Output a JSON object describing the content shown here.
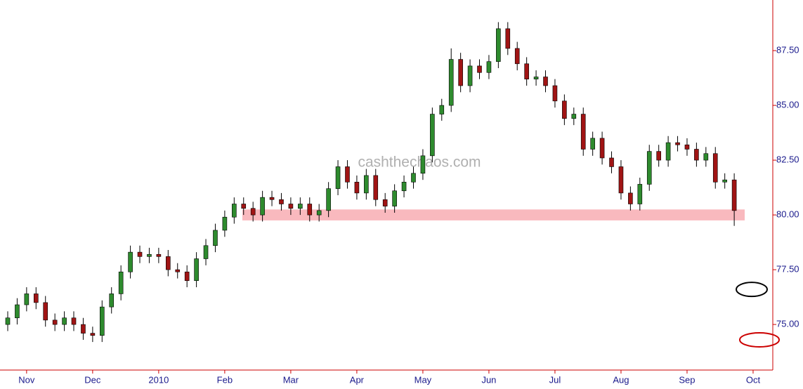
{
  "chart_data": {
    "type": "candlestick",
    "watermark": "cashthechaos.com",
    "categories": [
      null,
      null,
      "Nov",
      null,
      null,
      null,
      null,
      null,
      null,
      "Dec",
      null,
      null,
      null,
      null,
      null,
      null,
      "2010",
      null,
      null,
      null,
      null,
      null,
      null,
      "Feb",
      null,
      null,
      null,
      null,
      null,
      null,
      "Mar",
      null,
      null,
      null,
      null,
      null,
      null,
      "Apr",
      null,
      null,
      null,
      null,
      null,
      null,
      "May",
      null,
      null,
      null,
      null,
      null,
      null,
      "Jun",
      null,
      null,
      null,
      null,
      null,
      null,
      "Jul",
      null,
      null,
      null,
      null,
      null,
      null,
      "Aug",
      null,
      null,
      null,
      null,
      null,
      null,
      "Sep",
      null,
      null,
      null,
      null,
      null,
      null,
      "Oct"
    ],
    "open": [
      75.0,
      75.3,
      75.9,
      76.4,
      76.0,
      75.2,
      75.0,
      75.3,
      75.0,
      74.6,
      74.5,
      75.8,
      76.4,
      77.4,
      78.3,
      78.1,
      78.2,
      78.1,
      77.5,
      77.4,
      77.0,
      78.0,
      78.6,
      79.3,
      79.9,
      80.5,
      80.3,
      80.0,
      80.8,
      80.7,
      80.5,
      80.3,
      80.5,
      80.0,
      80.2,
      81.2,
      82.2,
      81.5,
      81.0,
      81.8,
      80.7,
      80.4,
      81.1,
      81.5,
      81.9,
      82.7,
      84.6,
      85.0,
      87.1,
      85.9,
      86.8,
      86.5,
      87.0,
      88.5,
      87.6,
      86.9,
      86.2,
      86.3,
      85.9,
      85.2,
      84.4,
      84.6,
      83.0,
      83.5,
      82.6,
      82.2,
      81.0,
      80.5,
      81.4,
      82.9,
      82.5,
      83.3,
      83.2,
      83.0,
      82.5,
      82.8,
      81.5,
      81.6,
      null,
      null
    ],
    "high": [
      75.6,
      76.2,
      76.7,
      76.7,
      76.3,
      75.5,
      75.6,
      75.6,
      75.3,
      74.9,
      76.1,
      76.7,
      77.7,
      78.6,
      78.6,
      78.5,
      78.5,
      78.4,
      77.8,
      77.7,
      78.3,
      78.9,
      79.6,
      80.2,
      80.8,
      80.8,
      80.6,
      81.1,
      81.1,
      81.0,
      80.8,
      80.8,
      80.8,
      80.5,
      81.5,
      82.5,
      82.5,
      81.8,
      82.1,
      82.1,
      81.0,
      81.4,
      81.8,
      82.2,
      83.0,
      84.9,
      85.3,
      87.6,
      87.4,
      87.1,
      87.1,
      87.3,
      88.8,
      88.8,
      87.9,
      87.2,
      86.6,
      86.6,
      86.2,
      85.5,
      84.9,
      84.9,
      83.8,
      83.8,
      82.9,
      82.5,
      81.3,
      81.7,
      83.2,
      83.2,
      83.6,
      83.6,
      83.5,
      83.3,
      83.1,
      83.1,
      81.9,
      81.9,
      null,
      null
    ],
    "low": [
      74.7,
      75.0,
      75.6,
      75.7,
      74.9,
      74.7,
      74.7,
      74.7,
      74.3,
      74.2,
      74.2,
      75.5,
      76.1,
      77.1,
      77.8,
      77.8,
      77.8,
      77.2,
      77.1,
      76.7,
      76.7,
      77.7,
      78.3,
      79.0,
      79.6,
      80.0,
      79.7,
      79.7,
      80.4,
      80.2,
      80.0,
      80.0,
      79.7,
      79.7,
      79.9,
      80.9,
      81.2,
      80.7,
      80.7,
      80.4,
      80.1,
      80.1,
      80.8,
      81.2,
      81.6,
      82.4,
      84.3,
      84.7,
      85.6,
      85.6,
      86.2,
      86.2,
      86.7,
      87.3,
      86.6,
      85.9,
      85.9,
      85.6,
      84.9,
      84.1,
      84.1,
      82.7,
      82.7,
      82.3,
      81.9,
      80.7,
      80.2,
      80.2,
      81.1,
      82.2,
      82.2,
      82.9,
      82.7,
      82.2,
      82.2,
      81.2,
      81.2,
      79.5,
      null,
      null
    ],
    "close": [
      75.3,
      75.9,
      76.4,
      76.0,
      75.2,
      75.0,
      75.3,
      75.0,
      74.6,
      74.5,
      75.8,
      76.4,
      77.4,
      78.3,
      78.1,
      78.2,
      78.1,
      77.5,
      77.4,
      77.0,
      78.0,
      78.6,
      79.3,
      79.9,
      80.5,
      80.3,
      80.0,
      80.8,
      80.7,
      80.5,
      80.3,
      80.5,
      80.0,
      80.2,
      81.2,
      82.2,
      81.5,
      81.0,
      81.8,
      80.7,
      80.4,
      81.1,
      81.5,
      81.9,
      82.7,
      84.6,
      85.0,
      87.1,
      85.9,
      86.8,
      86.5,
      87.0,
      88.5,
      87.6,
      86.9,
      86.2,
      86.3,
      85.9,
      85.2,
      84.4,
      84.6,
      83.0,
      83.5,
      82.6,
      82.2,
      81.0,
      80.5,
      81.4,
      82.9,
      82.5,
      83.3,
      83.2,
      83.0,
      82.5,
      82.8,
      81.5,
      81.6,
      80.2,
      null,
      null
    ],
    "up_color": "#2e8b2e",
    "down_color": "#a01414",
    "axis_color": "#cc0000",
    "ylim": [
      72.92,
      89.81
    ],
    "yticks": [
      {
        "value": 75,
        "label": "75.00"
      },
      {
        "value": 77.5,
        "label": "77.50"
      },
      {
        "value": 80,
        "label": "80.00"
      },
      {
        "value": 82.5,
        "label": "82.50"
      },
      {
        "value": 85,
        "label": "85.00"
      },
      {
        "value": 87.5,
        "label": "87.50"
      }
    ],
    "support_band": {
      "from": 79.75,
      "to": 80.25,
      "color": "#f9b9be"
    },
    "markers": [
      {
        "value": 76.6,
        "color": "#000000"
      },
      {
        "value": 74.3,
        "color": "#cc0000"
      }
    ]
  }
}
